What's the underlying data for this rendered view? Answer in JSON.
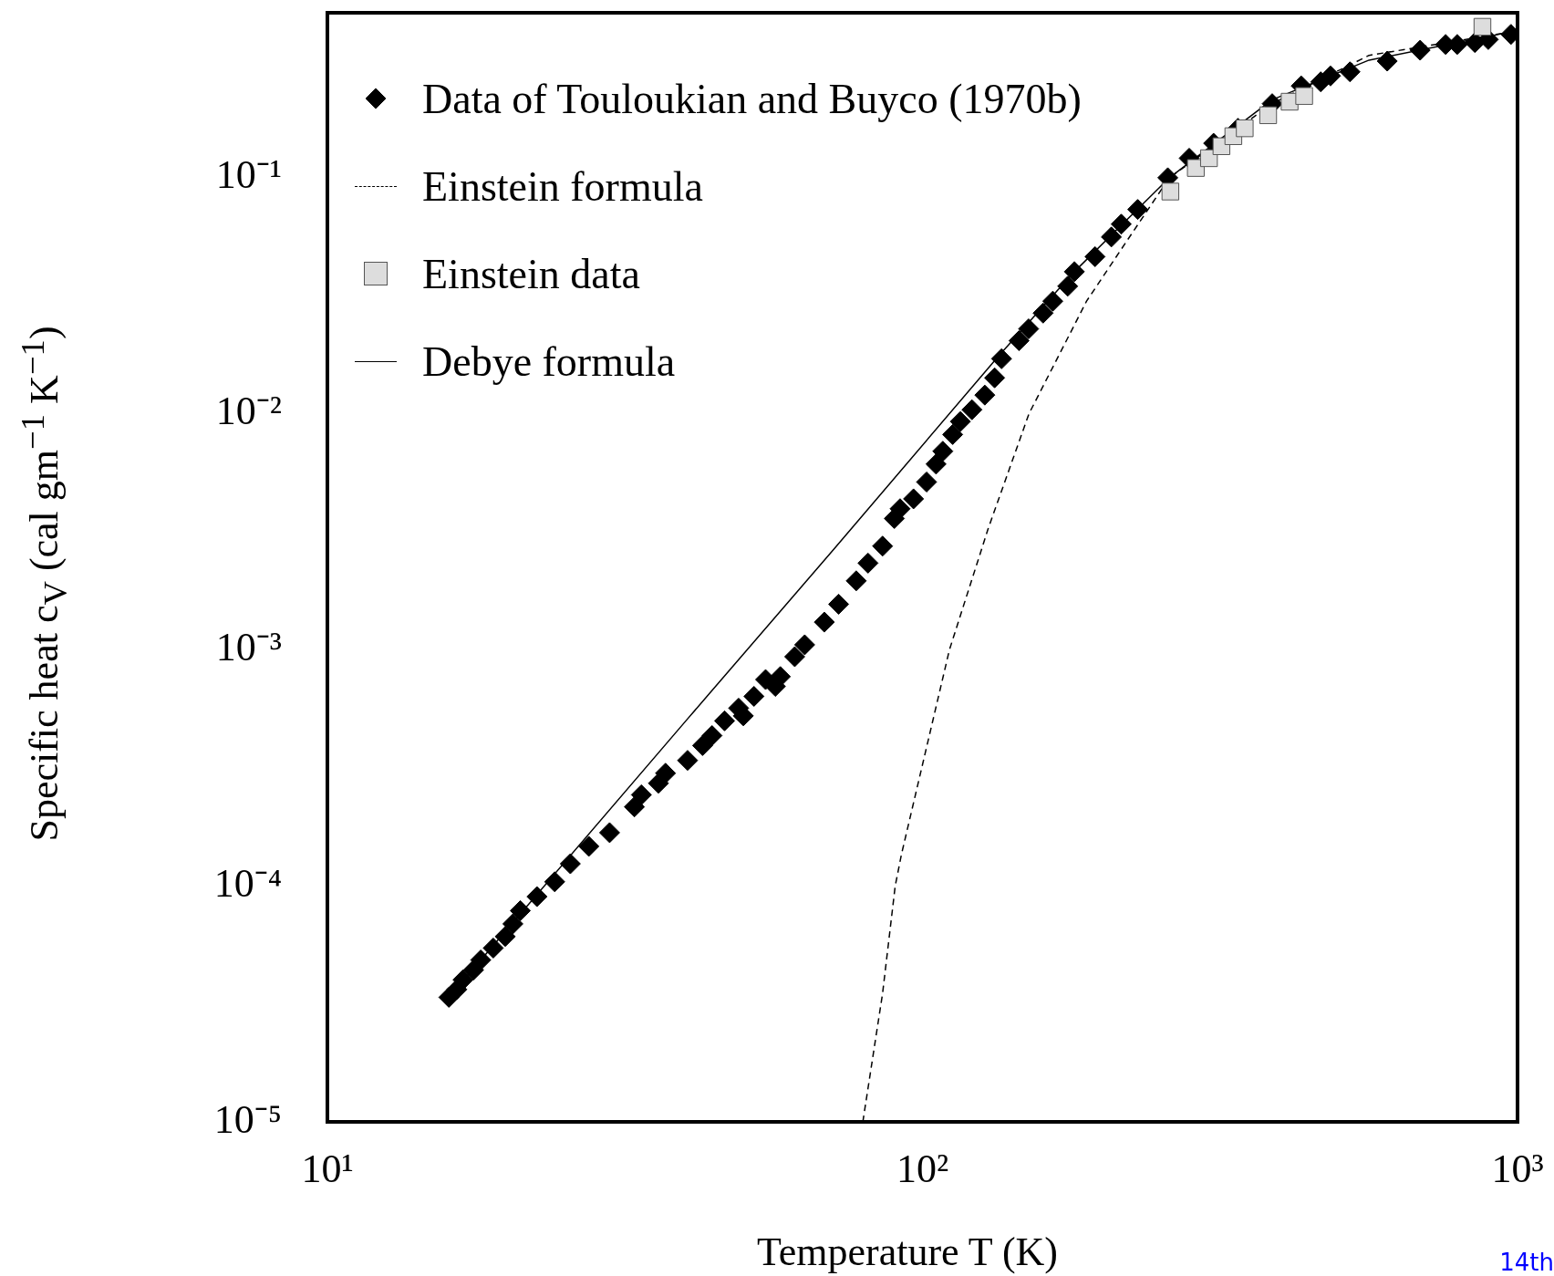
{
  "chart_data": {
    "type": "scatter",
    "xlabel": "Temperature T (K)",
    "ylabel": "Specific heat c$_{V}$ (cal gm$^{−1}$ K$^{−1}$)",
    "log": "xy",
    "grid": false,
    "legend": "top left",
    "xlim": [
      10,
      1000
    ],
    "xticks": [
      {
        "value": 10,
        "label": "10¹"
      },
      {
        "value": 100,
        "label": "10²"
      },
      {
        "value": 1000,
        "label": "10³"
      }
    ],
    "ylim": [
      1e-05,
      0.5
    ],
    "yticks": [
      {
        "value": 1e-05,
        "label": "10⁻⁵"
      },
      {
        "value": 0.0001,
        "label": "10⁻⁴"
      },
      {
        "value": 0.001,
        "label": "10⁻³"
      },
      {
        "value": 0.01,
        "label": "10⁻²"
      },
      {
        "value": 0.1,
        "label": "10⁻¹"
      }
    ],
    "annotations": [
      "14th"
    ],
    "series": [
      {
        "name": "Data of Touloukian and Buyco (1970b)",
        "marker": "diamond",
        "color": "#000000",
        "x": [
          16.0,
          16.5,
          16.9,
          17.6,
          18.1,
          19.0,
          19.9,
          20.5,
          21.1,
          22.5,
          24.1,
          25.6,
          27.5,
          29.8,
          32.8,
          33.7,
          36.0,
          37.0,
          40.3,
          42.7,
          44.3,
          46.5,
          49.1,
          50.0,
          52.1,
          54.5,
          56.6,
          57.7,
          61.0,
          63.4,
          68.4,
          72.3,
          77.4,
          81.0,
          85.7,
          89.7,
          91.7,
          96.6,
          101.6,
          105.4,
          108.2,
          112.4,
          115.8,
          121.1,
          127.3,
          132.2,
          135.8,
          145.3,
          150.8,
          159.5,
          165.6,
          175.4,
          180.0,
          195.0,
          207.7,
          215.8,
          230.0,
          258.4,
          280.7,
          308.5,
          339,
          387,
          433,
          467,
          485,
          523,
          604,
          686,
          757,
          792,
          848,
          893,
          975
        ],
        "values": [
          3.37e-05,
          3.64e-05,
          4e-05,
          4.4e-05,
          4.85e-05,
          5.45e-05,
          6.1e-05,
          6.9e-05,
          7.85e-05,
          9e-05,
          0.000104,
          0.000124,
          0.000147,
          0.000168,
          0.000216,
          0.000243,
          0.000272,
          0.0003,
          0.00034,
          0.000393,
          0.000433,
          0.0005,
          0.000566,
          0.000525,
          0.000635,
          0.000748,
          0.0007,
          0.00077,
          0.000935,
          0.00105,
          0.00131,
          0.00156,
          0.00196,
          0.00233,
          0.00275,
          0.0036,
          0.00396,
          0.00436,
          0.00514,
          0.00612,
          0.00694,
          0.00817,
          0.00927,
          0.0104,
          0.012,
          0.0142,
          0.0171,
          0.0204,
          0.0229,
          0.0267,
          0.03,
          0.0347,
          0.04,
          0.0463,
          0.0561,
          0.0636,
          0.0734,
          0.1,
          0.121,
          0.14,
          0.162,
          0.206,
          0.245,
          0.255,
          0.27,
          0.281,
          0.312,
          0.347,
          0.367,
          0.367,
          0.374,
          0.385,
          0.405
        ]
      },
      {
        "name": "Einstein formula",
        "type": "line",
        "line_style": "dashed",
        "color": "#000000",
        "x": [
          79.4,
          85.7,
          90,
          92.2,
          111,
          129,
          151,
          188.7,
          220,
          260,
          313,
          387,
          563,
          950,
          1000
        ],
        "values": [
          1e-05,
          3.5e-05,
          0.0001,
          0.000136,
          0.001,
          0.00327,
          0.01,
          0.03,
          0.0535,
          0.1,
          0.14,
          0.206,
          0.33,
          0.41,
          0.43
        ]
      },
      {
        "name": "Einstein data",
        "marker": "square",
        "color": "#dddddd",
        "x": [
          261,
          288,
          303,
          318,
          333,
          348,
          381,
          414,
          438,
          873
        ],
        "values": [
          0.0874,
          0.11,
          0.121,
          0.136,
          0.15,
          0.162,
          0.184,
          0.21,
          0.222,
          0.436
        ]
      },
      {
        "name": "Debye formula",
        "type": "line",
        "line_style": "solid",
        "color": "#000000",
        "x": [
          16,
          40.3,
          71,
          134.6,
          180,
          260,
          387,
          563,
          1000
        ],
        "values": [
          3.37e-05,
          0.00051,
          0.00267,
          0.0177,
          0.04,
          0.1,
          0.214,
          0.315,
          0.42
        ]
      }
    ]
  }
}
